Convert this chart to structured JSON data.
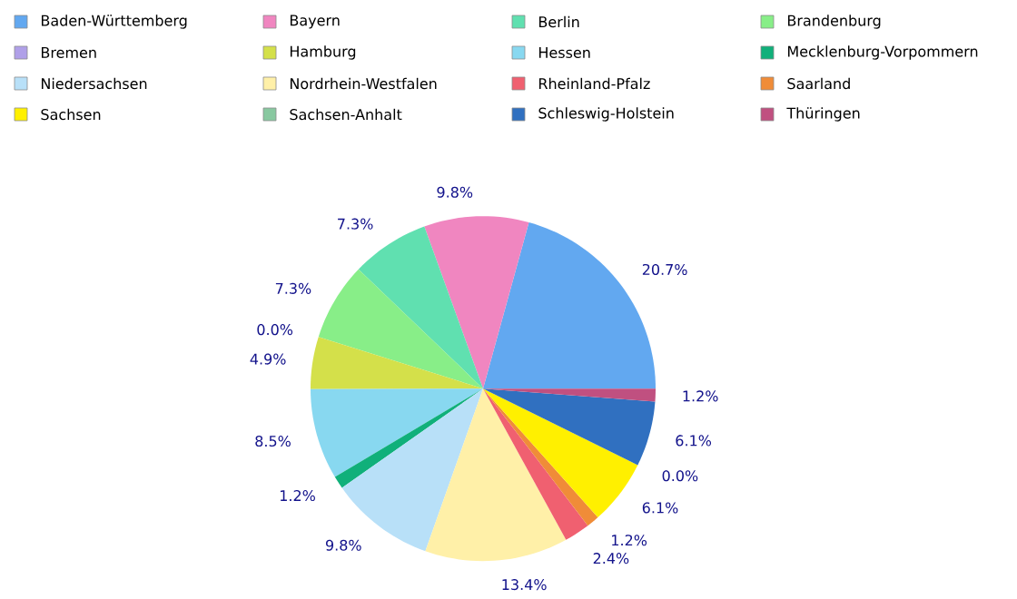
{
  "chart_data": {
    "type": "pie",
    "categories": [
      "Baden-Württemberg",
      "Bayern",
      "Berlin",
      "Brandenburg",
      "Bremen",
      "Hamburg",
      "Hessen",
      "Mecklenburg-Vorpommern",
      "Niedersachsen",
      "Nordrhein-Westfalen",
      "Rheinland-Pfalz",
      "Saarland",
      "Sachsen",
      "Sachsen-Anhalt",
      "Schleswig-Holstein",
      "Thüringen"
    ],
    "values": [
      20.7,
      9.8,
      7.3,
      7.3,
      0.0,
      4.9,
      8.5,
      1.2,
      9.8,
      13.4,
      2.4,
      1.2,
      6.1,
      0.0,
      6.1,
      1.2
    ],
    "value_labels": [
      "20.7%",
      "9.8%",
      "7.3%",
      "7.3%",
      "0.0%",
      "4.9%",
      "8.5%",
      "1.2%",
      "9.8%",
      "13.4%",
      "2.4%",
      "1.2%",
      "6.1%",
      "0.0%",
      "6.1%",
      "1.2%"
    ],
    "colors": [
      "#62a8f0",
      "#f086c0",
      "#60e0b0",
      "#88ee88",
      "#b0a0e8",
      "#d4e04a",
      "#88d8f0",
      "#10b07a",
      "#b8e0f8",
      "#fff0a8",
      "#f06070",
      "#f08c38",
      "#fff000",
      "#88c8a0",
      "#3070c0",
      "#c05080"
    ],
    "legend": "top"
  }
}
